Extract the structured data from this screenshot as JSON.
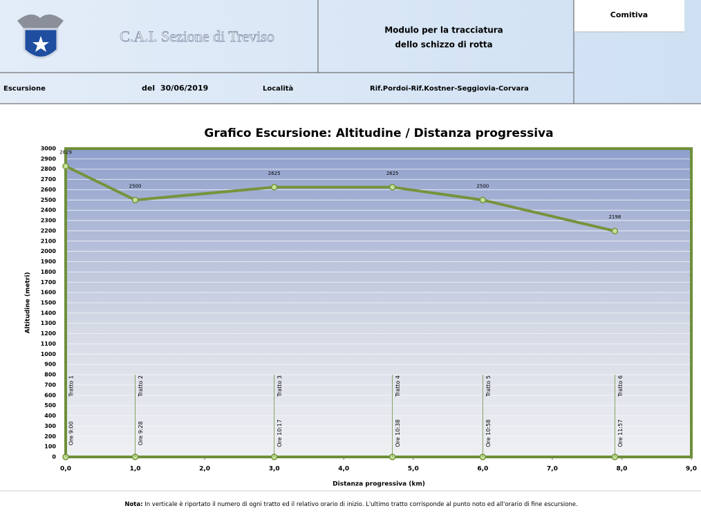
{
  "header": {
    "title": "C.A.I. Sezione di Treviso",
    "module_line1": "Modulo per la tracciatura",
    "module_line2": "dello schizzo di rotta",
    "group_label": "Comitiva",
    "excursion_label": "Escursione",
    "date_label": "del",
    "date": "30/06/2019",
    "place_label": "Località",
    "place": "Rif.Pordoi-Rif.Kostner-Seggiovia-Corvara"
  },
  "chart_data": {
    "type": "line",
    "title": "Grafico Escursione:  Altitudine / Distanza progressiva",
    "x_label": "Distanza progressiva (km)",
    "y_label": "Altitudine (metri)",
    "x": [
      0,
      1.0,
      3.0,
      4.7,
      6.0,
      7.9
    ],
    "series": [
      {
        "name": "Altitudine",
        "color": "#77933c",
        "values": [
          2829,
          2500,
          2625,
          2625,
          2500,
          2198
        ]
      }
    ],
    "segment_labels": [
      "Tratto 1",
      "Tratto 2",
      "Tratto 3",
      "Tratto 4",
      "Tratto 5",
      "Tratto 6"
    ],
    "time_labels": [
      "Ore 9:00",
      "Ore 9:28",
      "Ore 10:17",
      "Ore 10:38",
      "Ore 10:58",
      "Ore 11:57"
    ],
    "xlim": [
      0,
      9
    ],
    "ylim": [
      0,
      3000
    ],
    "xticks": [
      {
        "value": 0,
        "label": "0,0"
      },
      {
        "value": 1,
        "label": "1,0"
      },
      {
        "value": 2,
        "label": "2,0"
      },
      {
        "value": 3,
        "label": "3,0"
      },
      {
        "value": 4,
        "label": "4,0"
      },
      {
        "value": 5,
        "label": "5,0"
      },
      {
        "value": 6,
        "label": "6,0"
      },
      {
        "value": 7,
        "label": "7,0"
      },
      {
        "value": 8,
        "label": "8,0"
      },
      {
        "value": 9,
        "label": "9,0"
      }
    ],
    "yticks": [
      0,
      100,
      200,
      300,
      400,
      500,
      600,
      700,
      800,
      900,
      1000,
      1100,
      1200,
      1300,
      1400,
      1500,
      1600,
      1700,
      1800,
      1900,
      2000,
      2100,
      2200,
      2300,
      2400,
      2500,
      2600,
      2700,
      2800,
      2900,
      3000
    ],
    "grid": true,
    "note_label": "Nota:",
    "note_text": " In verticale è riportato il numero di ogni tratto ed il relativo orario di inizio. L'ultimo tratto corrisponde al punto noto ed all'orario di fine escursione."
  }
}
